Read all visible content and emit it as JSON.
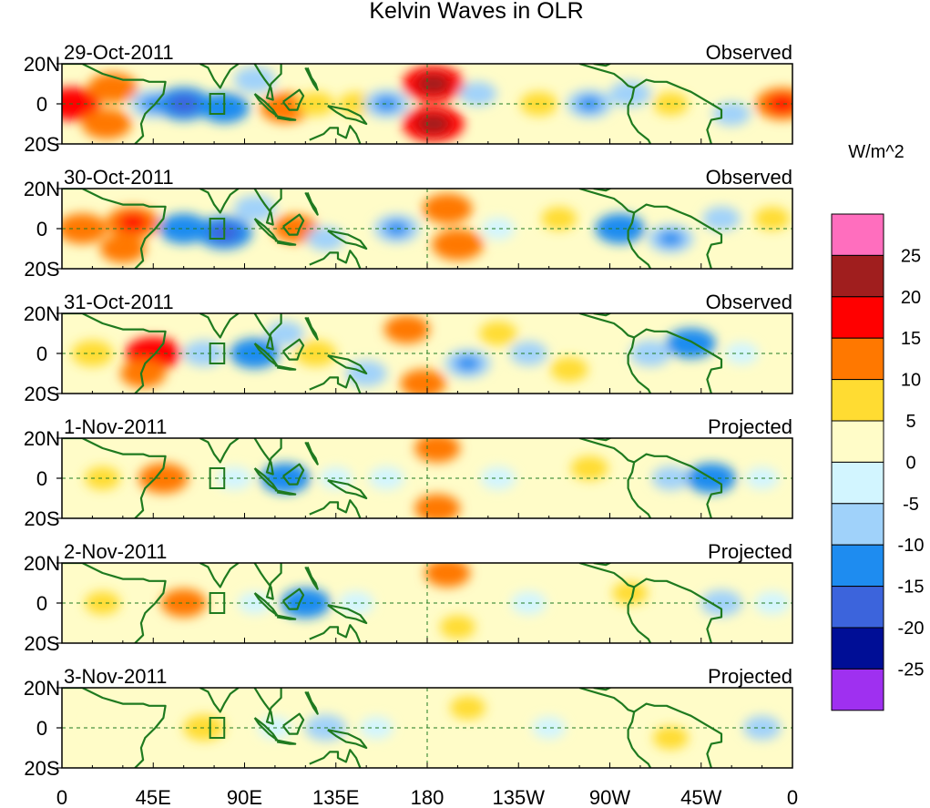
{
  "chart_data": {
    "type": "heatmap",
    "title": "Kelvin Waves in OLR",
    "colorbar": {
      "label": "W/m^2",
      "colors": [
        "#9f30f0",
        "#000e96",
        "#3c64dc",
        "#1e8cf0",
        "#a0d2fa",
        "#d2f5ff",
        "#fffcc8",
        "#ffdc32",
        "#ff7800",
        "#ff0000",
        "#a01e1e",
        "#ff6ebe"
      ],
      "tick_labels": [
        "25",
        "20",
        "15",
        "10",
        "5",
        "0",
        "-5",
        "-10",
        "-15",
        "-20",
        "-25"
      ]
    },
    "lat_tick_labels": [
      "20N",
      "0",
      "20S"
    ],
    "lon_tick_labels": [
      "0",
      "45E",
      "90E",
      "135E",
      "180",
      "135W",
      "90W",
      "45W",
      "0"
    ],
    "panels": [
      {
        "date": "29-Oct-2011",
        "type": "Observed",
        "anomalies": [
          {
            "lon": 5,
            "lat": 0,
            "value": 15
          },
          {
            "lon": 25,
            "lat": 8,
            "value": 12
          },
          {
            "lon": 22,
            "lat": -10,
            "value": 12
          },
          {
            "lon": 45,
            "lat": 0,
            "value": -10
          },
          {
            "lon": 60,
            "lat": 0,
            "value": -15
          },
          {
            "lon": 80,
            "lat": -2,
            "value": -12
          },
          {
            "lon": 95,
            "lat": 12,
            "value": -8
          },
          {
            "lon": 110,
            "lat": -2,
            "value": 12
          },
          {
            "lon": 125,
            "lat": 0,
            "value": 6
          },
          {
            "lon": 145,
            "lat": 0,
            "value": 5
          },
          {
            "lon": 160,
            "lat": 0,
            "value": -10
          },
          {
            "lon": 183,
            "lat": 10,
            "value": 18
          },
          {
            "lon": 183,
            "lat": -10,
            "value": 18
          },
          {
            "lon": 205,
            "lat": 5,
            "value": -6
          },
          {
            "lon": 235,
            "lat": 0,
            "value": 6
          },
          {
            "lon": 260,
            "lat": 0,
            "value": -10
          },
          {
            "lon": 280,
            "lat": 5,
            "value": -8
          },
          {
            "lon": 300,
            "lat": 0,
            "value": 5
          },
          {
            "lon": 330,
            "lat": -5,
            "value": -6
          },
          {
            "lon": 355,
            "lat": 0,
            "value": 14
          }
        ]
      },
      {
        "date": "30-Oct-2011",
        "type": "Observed",
        "anomalies": [
          {
            "lon": 10,
            "lat": 0,
            "value": 12
          },
          {
            "lon": 35,
            "lat": 3,
            "value": 14
          },
          {
            "lon": 30,
            "lat": -10,
            "value": 10
          },
          {
            "lon": 60,
            "lat": 0,
            "value": -12
          },
          {
            "lon": 80,
            "lat": -2,
            "value": -15
          },
          {
            "lon": 95,
            "lat": 10,
            "value": -8
          },
          {
            "lon": 115,
            "lat": 0,
            "value": 10
          },
          {
            "lon": 130,
            "lat": -5,
            "value": -6
          },
          {
            "lon": 165,
            "lat": 0,
            "value": -10
          },
          {
            "lon": 190,
            "lat": 10,
            "value": 12
          },
          {
            "lon": 195,
            "lat": -8,
            "value": 13
          },
          {
            "lon": 215,
            "lat": 0,
            "value": -4
          },
          {
            "lon": 245,
            "lat": 5,
            "value": 5
          },
          {
            "lon": 275,
            "lat": 0,
            "value": -12
          },
          {
            "lon": 300,
            "lat": -5,
            "value": -10
          },
          {
            "lon": 325,
            "lat": 5,
            "value": -6
          },
          {
            "lon": 350,
            "lat": 5,
            "value": 5
          }
        ]
      },
      {
        "date": "31-Oct-2011",
        "type": "Observed",
        "anomalies": [
          {
            "lon": 15,
            "lat": 0,
            "value": 8
          },
          {
            "lon": 45,
            "lat": 0,
            "value": 15
          },
          {
            "lon": 40,
            "lat": -10,
            "value": 10
          },
          {
            "lon": 70,
            "lat": 0,
            "value": -8
          },
          {
            "lon": 95,
            "lat": 0,
            "value": -12
          },
          {
            "lon": 110,
            "lat": 10,
            "value": -6
          },
          {
            "lon": 125,
            "lat": 0,
            "value": 8
          },
          {
            "lon": 150,
            "lat": -10,
            "value": -8
          },
          {
            "lon": 170,
            "lat": 12,
            "value": 10
          },
          {
            "lon": 178,
            "lat": -15,
            "value": 10
          },
          {
            "lon": 200,
            "lat": -5,
            "value": -10
          },
          {
            "lon": 215,
            "lat": 10,
            "value": 6
          },
          {
            "lon": 230,
            "lat": 0,
            "value": -6
          },
          {
            "lon": 250,
            "lat": -8,
            "value": 6
          },
          {
            "lon": 290,
            "lat": 0,
            "value": -8
          },
          {
            "lon": 310,
            "lat": 5,
            "value": -12
          },
          {
            "lon": 335,
            "lat": 0,
            "value": -4
          }
        ]
      },
      {
        "date": "1-Nov-2011",
        "type": "Projected",
        "anomalies": [
          {
            "lon": 20,
            "lat": 0,
            "value": 5
          },
          {
            "lon": 50,
            "lat": 0,
            "value": 12
          },
          {
            "lon": 85,
            "lat": 0,
            "value": -5
          },
          {
            "lon": 110,
            "lat": 0,
            "value": -12
          },
          {
            "lon": 135,
            "lat": 0,
            "value": -4
          },
          {
            "lon": 160,
            "lat": 0,
            "value": -5
          },
          {
            "lon": 185,
            "lat": 15,
            "value": 10
          },
          {
            "lon": 185,
            "lat": -15,
            "value": 10
          },
          {
            "lon": 215,
            "lat": 0,
            "value": -5
          },
          {
            "lon": 260,
            "lat": 5,
            "value": 6
          },
          {
            "lon": 300,
            "lat": 0,
            "value": -6
          },
          {
            "lon": 320,
            "lat": 0,
            "value": -12
          },
          {
            "lon": 345,
            "lat": 0,
            "value": -4
          }
        ]
      },
      {
        "date": "2-Nov-2011",
        "type": "Projected",
        "anomalies": [
          {
            "lon": 20,
            "lat": 0,
            "value": 5
          },
          {
            "lon": 60,
            "lat": 0,
            "value": 10
          },
          {
            "lon": 95,
            "lat": 0,
            "value": -4
          },
          {
            "lon": 120,
            "lat": 0,
            "value": -12
          },
          {
            "lon": 145,
            "lat": 0,
            "value": -5
          },
          {
            "lon": 190,
            "lat": 15,
            "value": 10
          },
          {
            "lon": 195,
            "lat": -12,
            "value": 5
          },
          {
            "lon": 230,
            "lat": 0,
            "value": -5
          },
          {
            "lon": 280,
            "lat": 5,
            "value": 5
          },
          {
            "lon": 325,
            "lat": 0,
            "value": -8
          },
          {
            "lon": 350,
            "lat": 0,
            "value": -5
          }
        ]
      },
      {
        "date": "3-Nov-2011",
        "type": "Projected",
        "anomalies": [
          {
            "lon": 20,
            "lat": 0,
            "value": 4
          },
          {
            "lon": 70,
            "lat": 0,
            "value": 8
          },
          {
            "lon": 105,
            "lat": 0,
            "value": -4
          },
          {
            "lon": 130,
            "lat": 0,
            "value": -8
          },
          {
            "lon": 155,
            "lat": 0,
            "value": -4
          },
          {
            "lon": 200,
            "lat": 10,
            "value": 5
          },
          {
            "lon": 200,
            "lat": -10,
            "value": 4
          },
          {
            "lon": 240,
            "lat": 0,
            "value": -4
          },
          {
            "lon": 300,
            "lat": -5,
            "value": 5
          },
          {
            "lon": 345,
            "lat": 0,
            "value": -6
          }
        ]
      }
    ]
  }
}
